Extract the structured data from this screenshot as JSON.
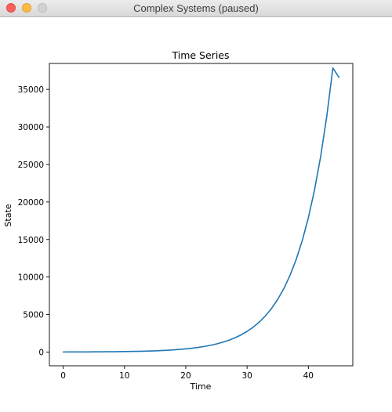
{
  "window": {
    "title": "Complex Systems (paused)"
  },
  "chart_data": {
    "type": "line",
    "title": "Time Series",
    "xlabel": "Time",
    "ylabel": "State",
    "xlim": [
      -2.25,
      47.25
    ],
    "ylim": [
      -1830,
      38460
    ],
    "xticks": [
      0,
      10,
      20,
      30,
      40
    ],
    "yticks": [
      0,
      5000,
      10000,
      15000,
      20000,
      25000,
      30000,
      35000
    ],
    "grid": false,
    "color": "#1f77b4",
    "series": [
      {
        "x": [
          0,
          1,
          2,
          3,
          4,
          5,
          6,
          7,
          8,
          9,
          10,
          11,
          12,
          13,
          14,
          15,
          16,
          17,
          18,
          19,
          20,
          21,
          22,
          23,
          24,
          25,
          26,
          27,
          28,
          29,
          30,
          31,
          32,
          33,
          34,
          35,
          36,
          37,
          38,
          39,
          40,
          41,
          42,
          43,
          44,
          45
        ],
        "y": [
          10,
          12,
          15,
          18,
          21,
          25,
          31,
          37,
          45,
          54,
          65,
          78,
          94,
          113,
          137,
          165,
          199,
          240,
          290,
          350,
          422,
          509,
          614,
          741,
          894,
          1078,
          1300,
          1568,
          1891,
          2281,
          2750,
          3317,
          4000,
          4825,
          5818,
          7017,
          8461,
          10204,
          12306,
          14840,
          17897,
          21583,
          26028,
          31389,
          37855,
          36600
        ]
      }
    ]
  }
}
